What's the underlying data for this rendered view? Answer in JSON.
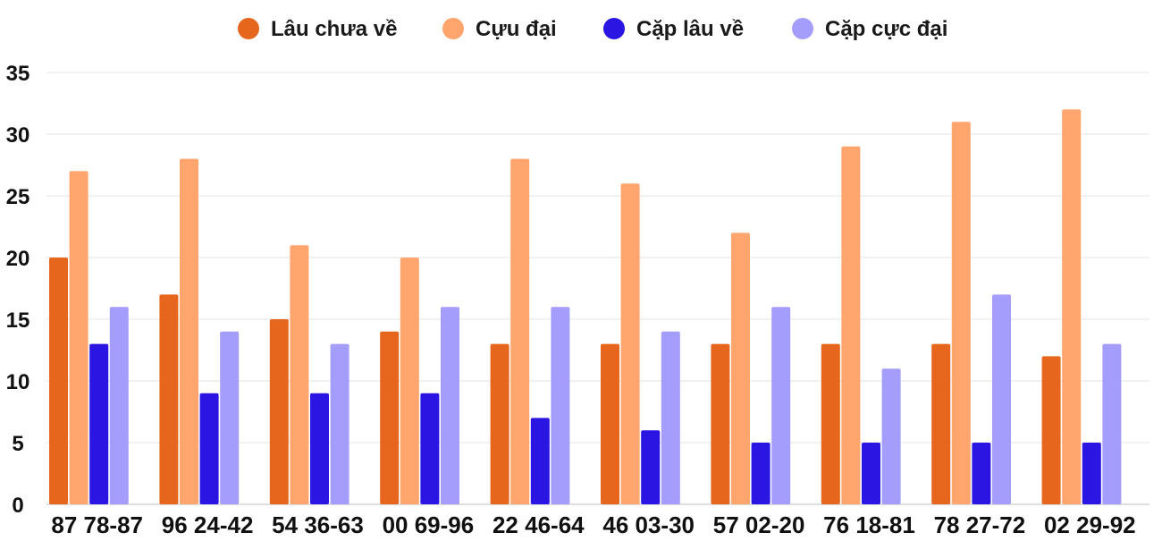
{
  "chart_data": {
    "type": "bar",
    "categories": [
      "87 78-87",
      "96 24-42",
      "54 36-63",
      "00 69-96",
      "22 46-64",
      "46 03-30",
      "57 02-20",
      "76 18-81",
      "78 27-72",
      "02 29-92"
    ],
    "series": [
      {
        "name": "Lâu chưa về",
        "color": "#e5661c",
        "values": [
          20,
          17,
          15,
          14,
          13,
          13,
          13,
          13,
          13,
          12
        ]
      },
      {
        "name": "Cựu đại",
        "color": "#ffa56d",
        "values": [
          27,
          28,
          21,
          20,
          28,
          26,
          22,
          29,
          31,
          32
        ]
      },
      {
        "name": "Cặp lâu về",
        "color": "#2a15e3",
        "values": [
          13,
          9,
          9,
          9,
          7,
          6,
          5,
          5,
          5,
          5
        ]
      },
      {
        "name": "Cặp cực đại",
        "color": "#a59dfb",
        "values": [
          16,
          14,
          13,
          16,
          16,
          14,
          16,
          11,
          17,
          13
        ]
      }
    ],
    "yticks": [
      "0",
      "5",
      "10",
      "15",
      "20",
      "25",
      "30",
      "35"
    ],
    "ylim": [
      0,
      35
    ],
    "grid": true,
    "legend": "top-center",
    "title": "",
    "xlabel": "",
    "ylabel": ""
  }
}
